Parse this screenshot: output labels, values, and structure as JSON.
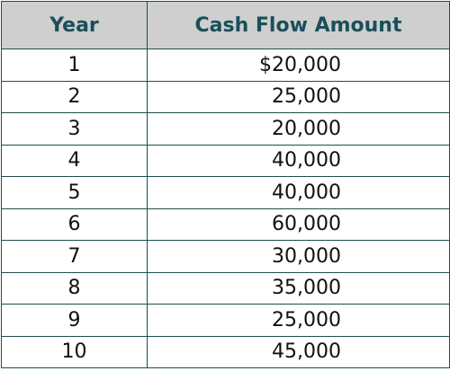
{
  "table": {
    "headers": {
      "year": "Year",
      "amount": "Cash Flow Amount"
    },
    "rows": [
      {
        "year": "1",
        "amount": "$20,000"
      },
      {
        "year": "2",
        "amount": "25,000"
      },
      {
        "year": "3",
        "amount": "20,000"
      },
      {
        "year": "4",
        "amount": "40,000"
      },
      {
        "year": "5",
        "amount": "40,000"
      },
      {
        "year": "6",
        "amount": "60,000"
      },
      {
        "year": "7",
        "amount": "30,000"
      },
      {
        "year": "8",
        "amount": "35,000"
      },
      {
        "year": "9",
        "amount": "25,000"
      },
      {
        "year": "10",
        "amount": "45,000"
      }
    ]
  },
  "colors": {
    "header_background": "#cfcfcf",
    "header_text": "#1a4f5a",
    "border": "#1f4e4e"
  }
}
